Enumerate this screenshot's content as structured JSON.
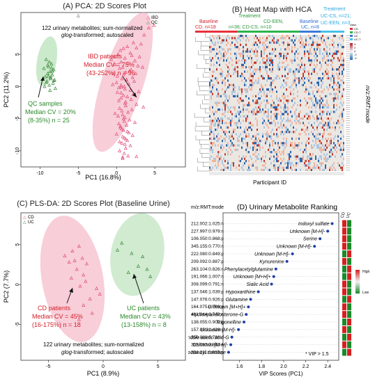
{
  "panelA": {
    "title": "(A)  PCA: 2D Scores Plot",
    "xlabel": "PC1 (16.8%)",
    "ylabel": "PC2 (11.2%)",
    "legend": [
      "IBD",
      "QC"
    ],
    "note_line1": "122 urinary metabolites; sum-normalized",
    "note_line2_a": "glog",
    "note_line2_b": "-transformed; autoscaled",
    "ibd_line1": "IBD patients",
    "ibd_line2": "Median CV = 75%",
    "ibd_line3": "(43-252%) n = 96",
    "qc_line1": "QC samples",
    "qc_line2": "Median CV = 20%",
    "qc_line3": "(8-35%) n = 25",
    "xticks": [
      "-10",
      "-5",
      "0",
      "5"
    ],
    "yticks": [
      "-10",
      "-5",
      "0",
      "5"
    ]
  },
  "panelB": {
    "title": "(B)  Heat Map with HCA",
    "xlabel": "Participant ID",
    "ylabel": "m/z:RMT:mode",
    "group1_line1": "Baseline",
    "group1_line2": "CD, n=18",
    "group2_line1": "Treatment",
    "group2_line2": "CD-EEN,",
    "group2_line3": "n=36; CD-CS, n=10",
    "group3_line1": "Baseline",
    "group3_line2": "UC, n=8",
    "group4_line1": "Treatment",
    "group4_line2": "UC-CS, n=21;",
    "group4_line3": "UC-EEN, n=3",
    "legend_title": "class",
    "legend_items": [
      "CD",
      "CD-T",
      "UC",
      "UC-T"
    ],
    "legend_colors": [
      "#e8303a",
      "#2bb34a",
      "#3a78d8",
      "#47c0e8"
    ],
    "colorbar_ticks": [
      "4",
      "2",
      "0",
      "-2",
      "-4"
    ]
  },
  "panelC": {
    "title": "(C)  PLS-DA: 2D Scores Plot (Baseline Urine)",
    "xlabel": "PC1 (8.9%)",
    "ylabel": "PC2 (7.7%)",
    "legend": [
      "CD",
      "UC"
    ],
    "cd_line1": "CD patients",
    "cd_line2": "Median CV = 45%",
    "cd_line3": "(16-175%) n = 18",
    "uc_line1": "UC patients",
    "uc_line2": "Median CV = 43%",
    "uc_line3": "(13-158%) n = 8",
    "note_line1": "122 urinary metabolites; sum-normalized",
    "note_line2_a": "glog",
    "note_line2_b": "-transformed; autoscaled",
    "xticks": [
      "-5",
      "0",
      "5"
    ],
    "yticks": [
      "-5",
      "0",
      "5"
    ]
  },
  "panelD": {
    "title": "(D)  Urinary Metabolite Ranking",
    "mz_header": "m/z:RMT:mode",
    "xlabel": "VIP Scores (PC1)",
    "col_labels": [
      "CD",
      "UC"
    ],
    "scale_high": "High",
    "scale_low": "Low",
    "vip_note": "* VIP > 1.5",
    "xticks": [
      "1.6",
      "1.8",
      "2.0",
      "2.2",
      "2.4"
    ]
  },
  "chart_data": [
    {
      "type": "scatter",
      "title": "(A)  PCA: 2D Scores Plot",
      "xlabel": "PC1 (16.8%)",
      "ylabel": "PC2 (11.2%)",
      "xlim": [
        -12.5,
        9
      ],
      "ylim": [
        -12.5,
        11.5
      ],
      "series": [
        {
          "name": "IBD",
          "color": "#e0507a",
          "x": [
            4.9,
            4.2,
            3.6,
            2.2,
            1.4,
            0.9,
            0.5,
            0.2,
            -0.3,
            -0.7,
            1.8,
            2.6,
            3.2,
            2.0,
            1.1,
            0.6,
            -0.2,
            0.8,
            1.5,
            2.4,
            3.0,
            2.8,
            1.9,
            1.2,
            0.4,
            -0.4,
            0.1,
            0.9,
            1.7,
            2.5,
            3.4,
            2.1,
            1.3,
            0.7,
            0.0,
            1.6,
            2.3,
            1.0,
            0.3,
            1.8,
            2.9,
            2.2,
            1.4,
            0.6,
            1.9,
            1.2,
            2.6,
            3.5,
            2.0,
            1.5,
            0.8,
            1.1,
            1.7,
            2.4,
            1.3,
            0.5,
            0.9,
            1.6,
            2.1,
            1.0,
            1.4,
            0.7,
            1.8,
            1.2,
            0.4,
            1.0,
            1.5,
            0.8,
            1.3,
            0.6,
            1.1,
            0.9,
            0.3,
            1.2,
            0.7,
            0.2,
            1.0,
            0.5,
            1.4,
            0.8,
            0.1,
            0.6,
            1.1,
            0.4,
            -0.2,
            0.9,
            0.3,
            0.7,
            0.0,
            1.2,
            -0.5,
            0.6,
            2.6,
            0.8,
            1.1,
            0.4
          ],
          "y": [
            9.5,
            9.1,
            8.0,
            6.8,
            6.2,
            5.9,
            5.6,
            5.0,
            4.6,
            4.2,
            5.2,
            6.0,
            6.6,
            4.8,
            4.4,
            3.8,
            3.4,
            3.0,
            3.6,
            4.0,
            4.6,
            3.2,
            2.6,
            2.2,
            2.8,
            2.0,
            1.6,
            1.8,
            2.4,
            2.0,
            3.0,
            1.4,
            1.0,
            1.2,
            0.6,
            0.4,
            0.8,
            0.0,
            -0.2,
            -0.6,
            -0.8,
            -1.2,
            -1.6,
            -1.0,
            -2.0,
            -2.4,
            -2.8,
            -3.2,
            -3.6,
            -4.0,
            -4.4,
            -4.8,
            -5.2,
            -5.6,
            -6.0,
            -6.4,
            -6.8,
            -7.2,
            -7.6,
            -8.0,
            -8.4,
            -8.8,
            -9.2,
            -9.6,
            -10.0,
            -10.4,
            -10.8,
            -11.2,
            1.1,
            0.2,
            -0.4,
            -1.4,
            -2.2,
            -3.0,
            -3.8,
            -4.6,
            -5.4,
            -6.2,
            -7.0,
            -7.8,
            -0.9,
            -1.8,
            -2.6,
            -3.4,
            -4.2,
            -5.0,
            -5.8,
            -6.6,
            -7.4,
            -8.2,
            0.3,
            -0.1,
            -10.9,
            -11.0,
            -9.0,
            -8.6
          ]
        },
        {
          "name": "QC",
          "color": "#3a8a3a",
          "x": [
            -9.2,
            -8.8,
            -8.5,
            -8.9,
            -9.5,
            -8.2,
            -8.7,
            -9.0,
            -8.4,
            -9.3,
            -8.6,
            -8.1,
            -9.1,
            -8.3,
            -8.8,
            -9.4,
            -8.0,
            -8.7,
            -9.0,
            -8.5,
            -8.9,
            -9.2,
            -8.4,
            -8.6,
            -8.2
          ],
          "y": [
            4.2,
            3.8,
            3.5,
            3.1,
            2.8,
            2.6,
            2.3,
            2.0,
            1.8,
            1.5,
            1.2,
            1.0,
            0.8,
            0.5,
            0.2,
            0.0,
            -0.3,
            -0.6,
            3.3,
            2.9,
            1.6,
            0.6,
            2.4,
            1.4,
            0.9
          ]
        }
      ]
    },
    {
      "type": "scatter",
      "title": "(C)  PLS-DA: 2D Scores Plot (Baseline Urine)",
      "xlabel": "PC1 (8.9%)",
      "ylabel": "PC2 (7.7%)",
      "xlim": [
        -7.5,
        7.5
      ],
      "ylim": [
        -9.5,
        9
      ],
      "series": [
        {
          "name": "CD",
          "color": "#e0507a",
          "x": [
            -2.2,
            -2.8,
            -3.5,
            -1.9,
            -2.6,
            -1.5,
            -3.1,
            -2.4,
            -1.8,
            -2.9,
            -1.6,
            -2.1,
            -0.6,
            -0.3,
            -1.2,
            -1.8,
            -1.0,
            -2.2
          ],
          "y": [
            4.8,
            4.2,
            3.6,
            3.3,
            3.0,
            2.6,
            2.8,
            1.9,
            1.2,
            0.8,
            0.4,
            -0.2,
            -0.5,
            -1.2,
            -1.8,
            -2.6,
            -3.6,
            -4.4
          ]
        },
        {
          "name": "UC",
          "color": "#3a8a3a",
          "x": [
            1.7,
            1.3,
            2.6,
            3.6,
            4.0,
            3.2,
            2.3,
            4.3
          ],
          "y": [
            5.2,
            4.3,
            3.9,
            3.5,
            1.9,
            2.3,
            1.5,
            1.0
          ]
        }
      ]
    },
    {
      "type": "scatter",
      "title": "(D)  Urinary Metabolite Ranking",
      "xlabel": "VIP Scores (PC1)",
      "xlim": [
        1.45,
        2.5
      ],
      "items": [
        {
          "mz": "212.002:1.025:n",
          "name": "Indoxyl sulfate",
          "vip": 2.44
        },
        {
          "mz": "227.997:0.979:n",
          "name": "Unknown [M-H]-",
          "vip": 2.4
        },
        {
          "mz": "106.050:0.868:p",
          "name": "Serine",
          "vip": 2.33
        },
        {
          "mz": "345.155:0.770:n",
          "name": "Unknown [M-H]-",
          "vip": 2.28
        },
        {
          "mz": "222.080:0.849:p",
          "name": "Unknown [M-H]-",
          "vip": 2.08
        },
        {
          "mz": "209.092:0.887:p",
          "name": "Kynurenine",
          "vip": 2.03
        },
        {
          "mz": "263.104:0.826:n",
          "name": "Phenylacetylglutamine",
          "vip": 1.93
        },
        {
          "mz": "191.066:1.007:n",
          "name": "Unknown [M+H]+",
          "vip": 1.91
        },
        {
          "mz": "308.099:0.791:n",
          "name": "Sialic Acid",
          "vip": 1.89
        },
        {
          "mz": "137.046:1.039:p",
          "name": "Hypoxanthine",
          "vip": 1.77
        },
        {
          "mz": "147.076:0.926:p",
          "name": "Glutamine",
          "vip": 1.7
        },
        {
          "mz": "164.075:0.769:p",
          "name": "Unknown [M+H]+",
          "vip": 1.68
        },
        {
          "mz": "481.244:0.742:n",
          "name": "Hydroxyandrosterone-G",
          "vip": 1.66
        },
        {
          "mz": "138.055:0.909:p",
          "name": "Trigonelline",
          "vip": 1.64
        },
        {
          "mz": "157.051:1.429:n",
          "name": "Unknown [M-H]-",
          "vip": 1.59
        },
        {
          "mz": "350.088:0.788:n",
          "name": "Indole acetic acid-G",
          "vip": 1.53
        },
        {
          "mz": "352.087:0.863:n",
          "name": "Unknown [M-H]-",
          "vip": 1.52
        },
        {
          "mz": "304.211:0.920:p",
          "name": "Hydroxyoctanoyl carnitine",
          "vip": 1.5
        }
      ]
    }
  ]
}
